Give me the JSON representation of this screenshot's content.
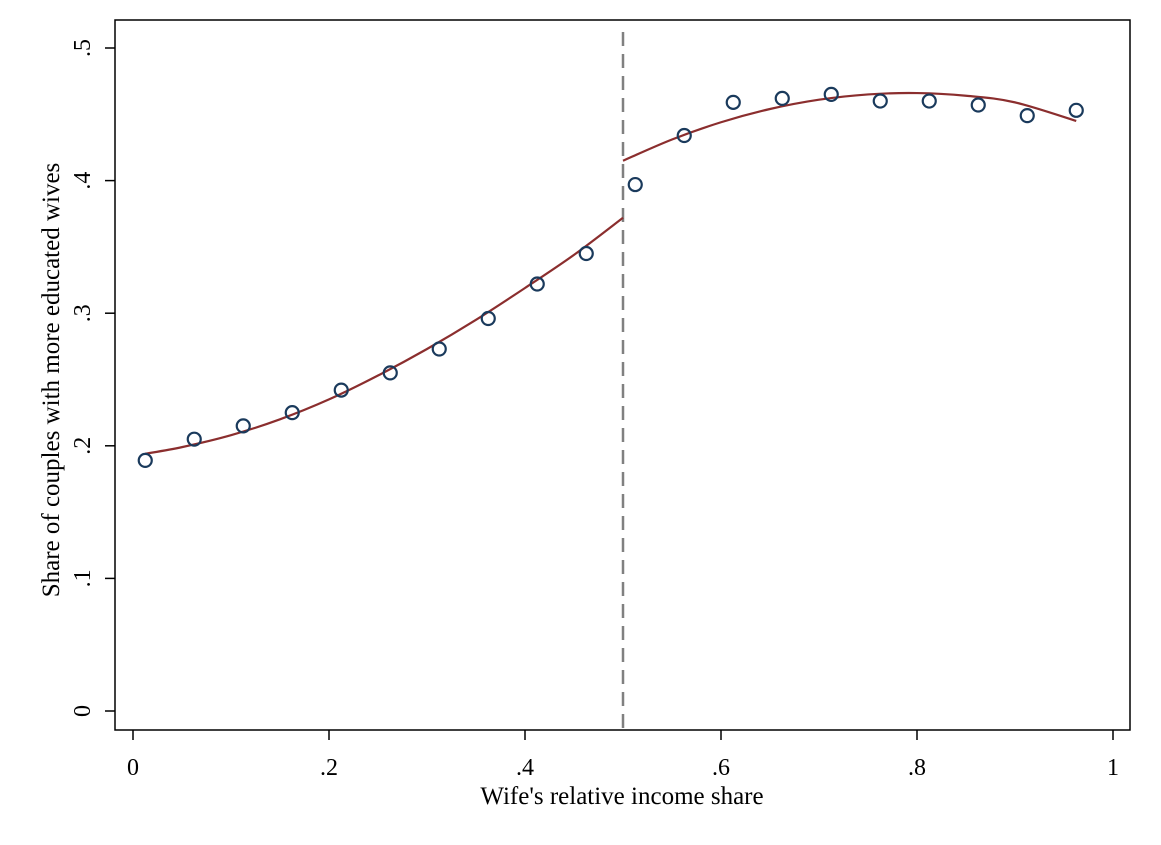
{
  "chart_data": {
    "type": "scatter",
    "xlabel": "Wife's relative income share",
    "ylabel": "Share of couples with more educated wives",
    "xlim": [
      0,
      1
    ],
    "ylim": [
      0,
      0.5
    ],
    "x_ticks": [
      {
        "value": 0,
        "label": "0"
      },
      {
        "value": 0.2,
        "label": ".2"
      },
      {
        "value": 0.4,
        "label": ".4"
      },
      {
        "value": 0.6,
        "label": ".6"
      },
      {
        "value": 0.8,
        "label": ".8"
      },
      {
        "value": 1,
        "label": "1"
      }
    ],
    "y_ticks": [
      {
        "value": 0,
        "label": "0"
      },
      {
        "value": 0.1,
        "label": ".1"
      },
      {
        "value": 0.2,
        "label": ".2"
      },
      {
        "value": 0.3,
        "label": ".3"
      },
      {
        "value": 0.4,
        "label": ".4"
      },
      {
        "value": 0.5,
        "label": ".5"
      }
    ],
    "grid": false,
    "cutoff_x": 0.5,
    "series": [
      {
        "kind": "scatter",
        "marker": "hollow-circle",
        "color": "#1a3a5c",
        "points": [
          [
            0.0125,
            0.189
          ],
          [
            0.0625,
            0.205
          ],
          [
            0.1125,
            0.215
          ],
          [
            0.1625,
            0.225
          ],
          [
            0.2125,
            0.242
          ],
          [
            0.2625,
            0.255
          ],
          [
            0.3125,
            0.273
          ],
          [
            0.3625,
            0.296
          ],
          [
            0.4125,
            0.322
          ],
          [
            0.4625,
            0.345
          ],
          [
            0.5125,
            0.397
          ],
          [
            0.5625,
            0.434
          ],
          [
            0.6125,
            0.459
          ],
          [
            0.6625,
            0.462
          ],
          [
            0.7125,
            0.465
          ],
          [
            0.7625,
            0.46
          ],
          [
            0.8125,
            0.46
          ],
          [
            0.8625,
            0.457
          ],
          [
            0.9125,
            0.449
          ],
          [
            0.9625,
            0.453
          ]
        ]
      },
      {
        "kind": "line",
        "color": "#8b2e2e",
        "points": [
          [
            0.0125,
            0.194
          ],
          [
            0.05,
            0.199
          ],
          [
            0.1,
            0.208
          ],
          [
            0.15,
            0.22
          ],
          [
            0.2,
            0.235
          ],
          [
            0.25,
            0.253
          ],
          [
            0.3,
            0.273
          ],
          [
            0.35,
            0.295
          ],
          [
            0.4,
            0.319
          ],
          [
            0.45,
            0.344
          ],
          [
            0.5,
            0.372
          ]
        ]
      },
      {
        "kind": "line",
        "color": "#8b2e2e",
        "points": [
          [
            0.5,
            0.415
          ],
          [
            0.55,
            0.431
          ],
          [
            0.6,
            0.444
          ],
          [
            0.65,
            0.454
          ],
          [
            0.7,
            0.461
          ],
          [
            0.75,
            0.465
          ],
          [
            0.8,
            0.466
          ],
          [
            0.85,
            0.464
          ],
          [
            0.9,
            0.459
          ],
          [
            0.9625,
            0.445
          ]
        ]
      }
    ]
  }
}
